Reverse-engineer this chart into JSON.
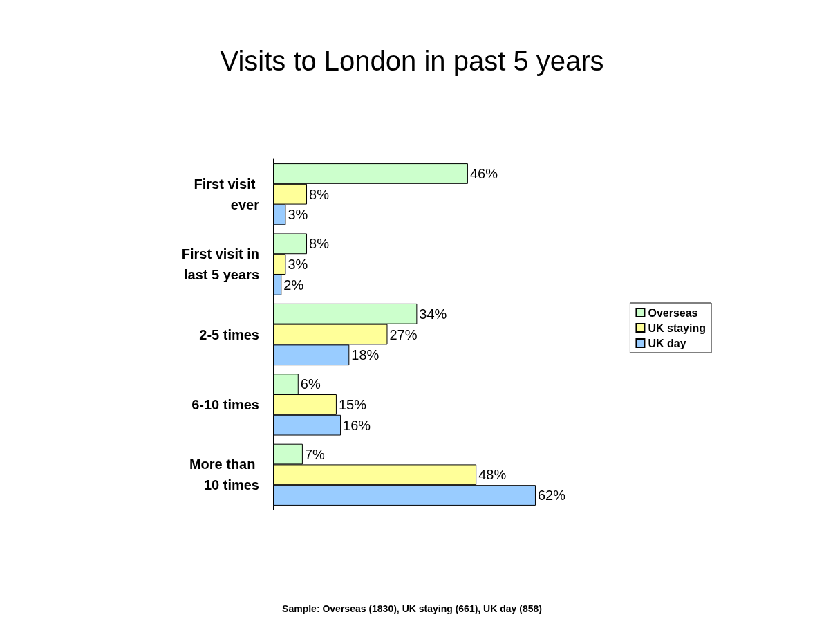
{
  "chart_data": {
    "type": "bar",
    "orientation": "horizontal",
    "title": "Visits to London in past 5 years",
    "categories": [
      "First visit ever",
      "First visit in last 5 years",
      "2-5 times",
      "6-10 times",
      "More than 10 times"
    ],
    "series": [
      {
        "name": "Overseas",
        "color": "#ccffcc",
        "values": [
          46,
          8,
          34,
          6,
          7
        ],
        "value_labels": [
          "46%",
          "8%",
          "34%",
          "6%",
          "7%"
        ]
      },
      {
        "name": "UK staying",
        "color": "#ffff99",
        "values": [
          8,
          3,
          27,
          15,
          48
        ],
        "value_labels": [
          "8%",
          "3%",
          "27%",
          "15%",
          "48%"
        ]
      },
      {
        "name": "UK day",
        "color": "#99ccff",
        "values": [
          3,
          2,
          18,
          16,
          62
        ],
        "value_labels": [
          "3%",
          "2%",
          "18%",
          "16%",
          "62%"
        ]
      }
    ],
    "legend": "right",
    "annotations": [
      "Sample: Overseas (1830), UK staying (661), UK day (858)"
    ]
  }
}
